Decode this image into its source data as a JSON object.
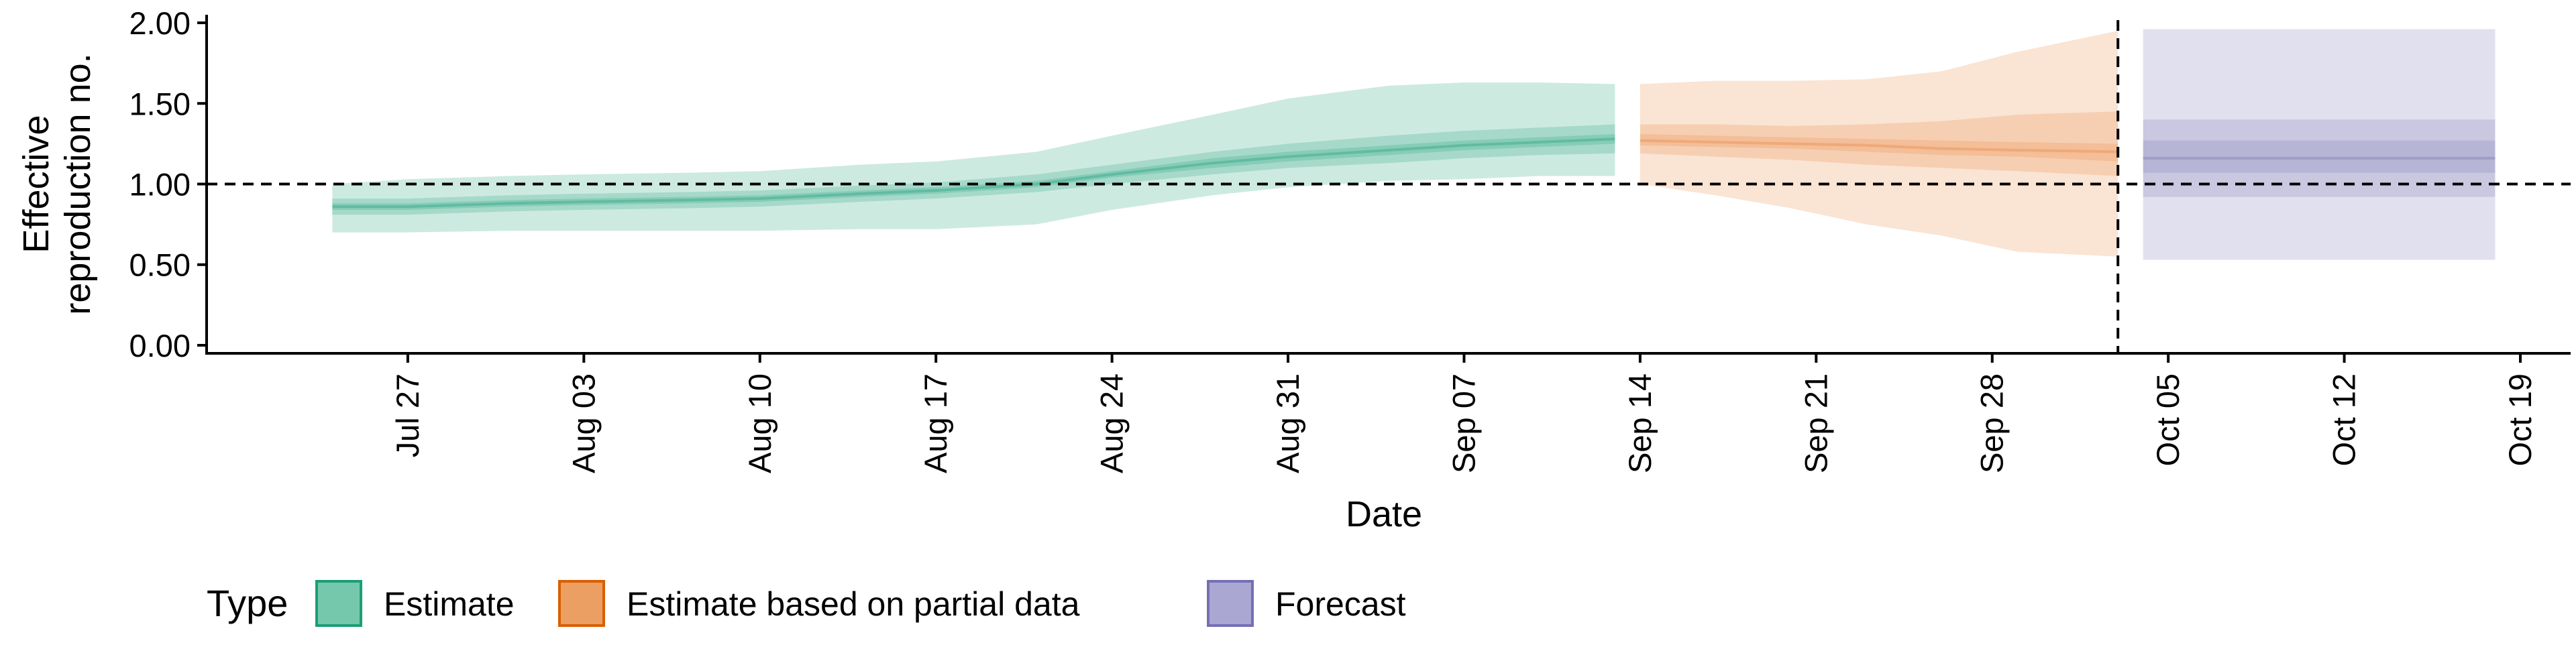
{
  "chart_data": {
    "type": "area",
    "xlabel": "Date",
    "ylabel": "Effective\nreproduction no.",
    "x_axis": {
      "type": "date",
      "range": [
        "2020-07-19",
        "2020-10-21"
      ],
      "ticks": [
        "2020-07-27",
        "2020-08-03",
        "2020-08-10",
        "2020-08-17",
        "2020-08-24",
        "2020-08-31",
        "2020-09-07",
        "2020-09-14",
        "2020-09-21",
        "2020-09-28",
        "2020-10-05",
        "2020-10-12",
        "2020-10-19"
      ],
      "tick_labels": [
        "Jul 27",
        "Aug 03",
        "Aug 10",
        "Aug 17",
        "Aug 24",
        "Aug 31",
        "Sep 07",
        "Sep 14",
        "Sep 21",
        "Sep 28",
        "Oct 05",
        "Oct 12",
        "Oct 19"
      ]
    },
    "y_axis": {
      "range": [
        -0.05,
        2.05
      ],
      "ticks": [
        0.0,
        0.5,
        1.0,
        1.5,
        2.0
      ],
      "tick_labels": [
        "0.00",
        "0.50",
        "1.00",
        "1.50",
        "2.00"
      ]
    },
    "reference_lines": {
      "horizontal_y": 1.0,
      "vertical_x": "2020-10-03"
    },
    "legend": {
      "position": "bottom-left",
      "title": "Type",
      "entries": [
        {
          "label": "Estimate",
          "color": "#1b9e77"
        },
        {
          "label": "Estimate based on partial data",
          "color": "#d95f02"
        },
        {
          "label": "Forecast",
          "color": "#7570b3"
        }
      ]
    },
    "colors": {
      "Estimate": {
        "fill": "#1b9e77",
        "border": "#1b9e77",
        "swatch": "#76c8ad"
      },
      "Estimate based on partial data": {
        "fill": "#e8853a",
        "border": "#d95f02",
        "swatch": "#eb9f62"
      },
      "Forecast": {
        "fill": "#7570b3",
        "border": "#7570b3",
        "swatch": "#aaa7d3"
      }
    },
    "series": [
      {
        "name": "Estimate",
        "x": [
          "2020-07-24",
          "2020-07-27",
          "2020-07-31",
          "2020-08-03",
          "2020-08-07",
          "2020-08-10",
          "2020-08-14",
          "2020-08-17",
          "2020-08-21",
          "2020-08-24",
          "2020-08-28",
          "2020-08-31",
          "2020-09-04",
          "2020-09-07",
          "2020-09-10",
          "2020-09-13"
        ],
        "median": [
          0.86,
          0.86,
          0.88,
          0.89,
          0.9,
          0.91,
          0.94,
          0.96,
          1.0,
          1.06,
          1.13,
          1.17,
          1.21,
          1.24,
          1.26,
          1.28
        ],
        "lower_90": [
          0.7,
          0.7,
          0.71,
          0.71,
          0.71,
          0.71,
          0.72,
          0.72,
          0.75,
          0.84,
          0.93,
          0.98,
          1.02,
          1.03,
          1.05,
          1.05
        ],
        "upper_90": [
          1.0,
          1.03,
          1.05,
          1.06,
          1.07,
          1.08,
          1.12,
          1.14,
          1.2,
          1.3,
          1.43,
          1.53,
          1.61,
          1.63,
          1.63,
          1.62
        ],
        "lower_50": [
          0.81,
          0.81,
          0.83,
          0.84,
          0.85,
          0.86,
          0.89,
          0.91,
          0.95,
          1.0,
          1.06,
          1.1,
          1.13,
          1.16,
          1.18,
          1.19
        ],
        "upper_50": [
          0.91,
          0.91,
          0.93,
          0.94,
          0.95,
          0.96,
          0.99,
          1.01,
          1.06,
          1.12,
          1.2,
          1.25,
          1.3,
          1.33,
          1.35,
          1.37
        ],
        "lower_20": [
          0.84,
          0.84,
          0.86,
          0.87,
          0.88,
          0.89,
          0.92,
          0.94,
          0.98,
          1.04,
          1.1,
          1.14,
          1.18,
          1.21,
          1.23,
          1.25
        ],
        "upper_20": [
          0.88,
          0.88,
          0.9,
          0.91,
          0.92,
          0.93,
          0.96,
          0.98,
          1.02,
          1.08,
          1.16,
          1.2,
          1.24,
          1.27,
          1.29,
          1.31
        ]
      },
      {
        "name": "Estimate based on partial data",
        "x": [
          "2020-09-14",
          "2020-09-17",
          "2020-09-20",
          "2020-09-23",
          "2020-09-26",
          "2020-09-29",
          "2020-10-03"
        ],
        "median": [
          1.27,
          1.26,
          1.25,
          1.24,
          1.22,
          1.21,
          1.2
        ],
        "lower_90": [
          1.0,
          0.93,
          0.85,
          0.75,
          0.68,
          0.58,
          0.55
        ],
        "upper_90": [
          1.62,
          1.64,
          1.64,
          1.65,
          1.7,
          1.82,
          1.95
        ],
        "lower_50": [
          1.19,
          1.17,
          1.15,
          1.12,
          1.1,
          1.08,
          1.05
        ],
        "upper_50": [
          1.37,
          1.37,
          1.36,
          1.37,
          1.39,
          1.43,
          1.45
        ],
        "lower_20": [
          1.24,
          1.23,
          1.22,
          1.2,
          1.18,
          1.17,
          1.14
        ],
        "upper_20": [
          1.31,
          1.3,
          1.29,
          1.28,
          1.27,
          1.26,
          1.25
        ]
      },
      {
        "name": "Forecast",
        "x": [
          "2020-10-04",
          "2020-10-18"
        ],
        "median": [
          1.16,
          1.16
        ],
        "lower_90": [
          0.53,
          0.53
        ],
        "upper_90": [
          1.96,
          1.96
        ],
        "lower_50": [
          0.92,
          0.92
        ],
        "upper_50": [
          1.4,
          1.4
        ],
        "lower_20": [
          1.07,
          1.07
        ],
        "upper_20": [
          1.27,
          1.27
        ]
      }
    ]
  }
}
